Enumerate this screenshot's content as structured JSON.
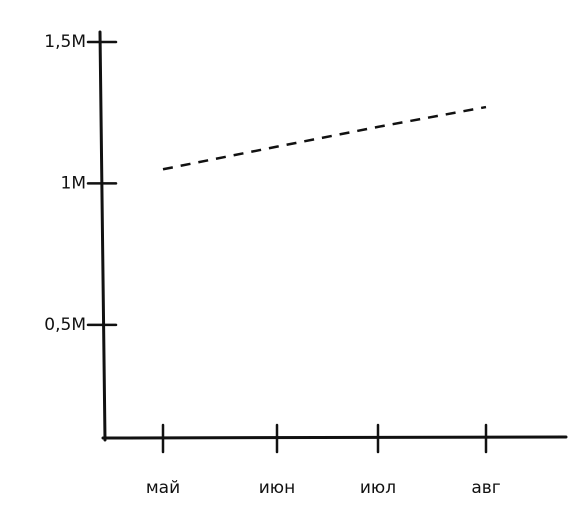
{
  "chart_data": {
    "type": "line",
    "categories": [
      "май",
      "июн",
      "июл",
      "авг"
    ],
    "series": [
      {
        "color": "#111111",
        "values": [
          1050000,
          1130000,
          1200000,
          1270000
        ]
      }
    ],
    "ylim": [
      100000,
      1500000
    ],
    "yticks": [
      {
        "value": 500000,
        "label": "0,5M"
      },
      {
        "value": 1000000,
        "label": "1M"
      },
      {
        "value": 1500000,
        "label": "1,5M"
      }
    ],
    "dashed": true
  }
}
